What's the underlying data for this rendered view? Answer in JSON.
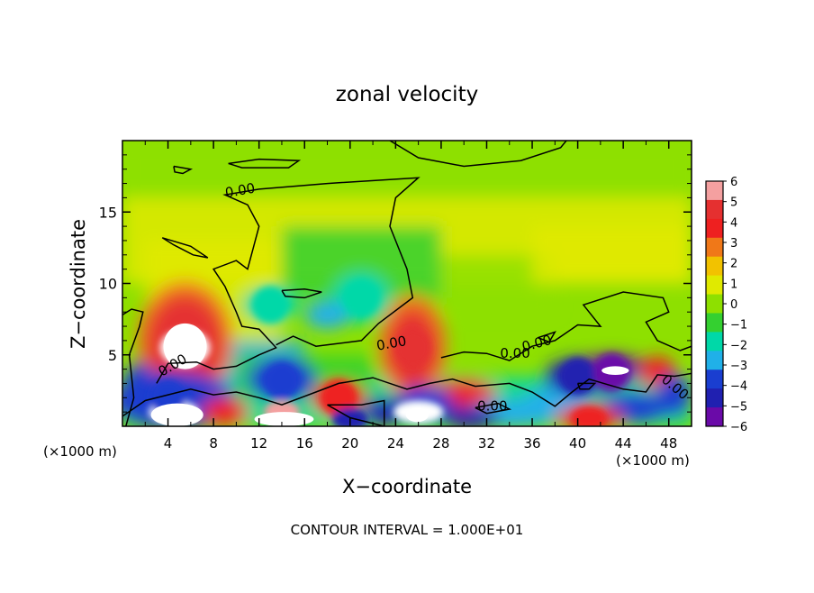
{
  "chart_data": {
    "type": "heatmap",
    "title": "zonal velocity",
    "xlabel": "X−coordinate",
    "ylabel": "Z−coordinate",
    "x_unit_left": "(×1000 m)",
    "x_unit_right": "(×1000 m)",
    "footer": "CONTOUR INTERVAL = 1.000E+01",
    "xlim": [
      0,
      50
    ],
    "ylim": [
      0,
      20
    ],
    "x_ticks": [
      4,
      8,
      12,
      16,
      20,
      24,
      28,
      32,
      36,
      40,
      44,
      48
    ],
    "y_ticks": [
      5,
      10,
      15
    ],
    "colorbar": {
      "levels": [
        "6",
        "5",
        "4",
        "3",
        "2",
        "1",
        "0",
        "−1",
        "−2",
        "−3",
        "−4",
        "−5",
        "−6"
      ],
      "colors": [
        "#f4a0a0",
        "#e53030",
        "#ee2020",
        "#f07818",
        "#f2c200",
        "#e0ea00",
        "#8ee000",
        "#34d030",
        "#00d8a8",
        "#20b0e8",
        "#1a3ed0",
        "#2020b0",
        "#6a0aa8"
      ],
      "range": [
        -6,
        6
      ]
    },
    "contour_labels": [
      "0.00",
      "0.00",
      "0.00",
      "0.00",
      "0.00",
      "0.00",
      "0.00"
    ],
    "features": [
      {
        "x": 5.5,
        "z": 5.5,
        "value": 7
      },
      {
        "x": 4.5,
        "z": 1.0,
        "value": 7
      },
      {
        "x": 14.0,
        "z": 1.0,
        "value": 6
      },
      {
        "x": 25.5,
        "z": 5.5,
        "value": 5
      },
      {
        "x": 19.0,
        "z": 2.0,
        "value": 4
      },
      {
        "x": 26.0,
        "z": 1.0,
        "value": 7
      },
      {
        "x": 41.0,
        "z": 0.6,
        "value": 4
      },
      {
        "x": 40.0,
        "z": 3.5,
        "value": -5
      },
      {
        "x": 43.0,
        "z": 3.8,
        "value": -6
      },
      {
        "x": 14.0,
        "z": 3.2,
        "value": -4
      },
      {
        "x": 20.0,
        "z": 0.5,
        "value": -5
      },
      {
        "x": 4.0,
        "z": 2.0,
        "value": -4
      },
      {
        "x": 21.0,
        "z": 9.0,
        "value": -2
      },
      {
        "x": 13.0,
        "z": 8.5,
        "value": -2
      }
    ]
  }
}
